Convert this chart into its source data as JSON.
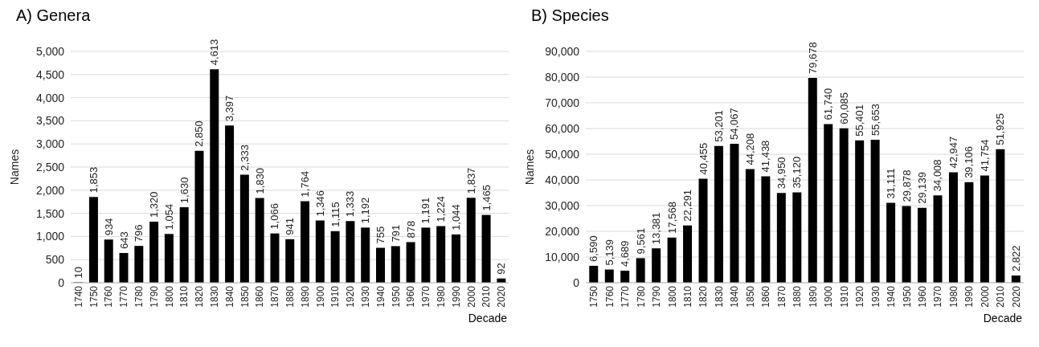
{
  "chart_data": [
    {
      "type": "bar",
      "title": "A) Genera",
      "xlabel": "Decade",
      "ylabel": "Names",
      "categories": [
        "1740",
        "1750",
        "1760",
        "1770",
        "1780",
        "1790",
        "1800",
        "1810",
        "1820",
        "1830",
        "1840",
        "1850",
        "1860",
        "1870",
        "1880",
        "1890",
        "1900",
        "1910",
        "1920",
        "1930",
        "1940",
        "1950",
        "1960",
        "1970",
        "1980",
        "1990",
        "2000",
        "2010",
        "2020"
      ],
      "values": [
        10,
        1853,
        934,
        643,
        796,
        1320,
        1054,
        1630,
        2850,
        4613,
        3397,
        2333,
        1830,
        1066,
        941,
        1764,
        1346,
        1115,
        1333,
        1192,
        755,
        791,
        878,
        1191,
        1224,
        1044,
        1837,
        1465,
        92
      ],
      "value_labels": [
        "10",
        "1,853",
        "934",
        "643",
        "796",
        "1,320",
        "1,054",
        "1,630",
        "2,850",
        "4,613",
        "3,397",
        "2,333",
        "1,830",
        "1,066",
        "941",
        "1,764",
        "1,346",
        "1,115",
        "1,333",
        "1,192",
        "755",
        "791",
        "878",
        "1,191",
        "1,224",
        "1,044",
        "1,837",
        "1,465",
        "92"
      ],
      "color": "#000000",
      "ylim": [
        0,
        5000
      ],
      "yticks": [
        {
          "value": 0,
          "label": "0"
        },
        {
          "value": 500,
          "label": "500"
        },
        {
          "value": 1000,
          "label": "1,000"
        },
        {
          "value": 1500,
          "label": "1,500"
        },
        {
          "value": 2000,
          "label": "2,000"
        },
        {
          "value": 2500,
          "label": "2,500"
        },
        {
          "value": 3000,
          "label": "3,000"
        },
        {
          "value": 3500,
          "label": "3,500"
        },
        {
          "value": 4000,
          "label": "4,000"
        },
        {
          "value": 4500,
          "label": "4,500"
        },
        {
          "value": 5000,
          "label": "5,000"
        }
      ],
      "grid": "y",
      "legend": false
    },
    {
      "type": "bar",
      "title": "B) Species",
      "xlabel": "Decade",
      "ylabel": "Names",
      "categories": [
        "1750",
        "1760",
        "1770",
        "1780",
        "1790",
        "1800",
        "1810",
        "1820",
        "1830",
        "1840",
        "1850",
        "1860",
        "1870",
        "1880",
        "1890",
        "1900",
        "1910",
        "1920",
        "1930",
        "1940",
        "1950",
        "1960",
        "1970",
        "1980",
        "1990",
        "2000",
        "2010",
        "2020"
      ],
      "values": [
        6590,
        5139,
        4689,
        9561,
        13381,
        17568,
        22291,
        40455,
        53201,
        54067,
        44208,
        41438,
        34950,
        35120,
        79678,
        61740,
        60085,
        55401,
        55653,
        31111,
        29878,
        29139,
        34008,
        42947,
        39106,
        41754,
        51925,
        2822
      ],
      "value_labels": [
        "6,590",
        "5,139",
        "4,689",
        "9,561",
        "13,381",
        "17,568",
        "22,291",
        "40,455",
        "53,201",
        "54,067",
        "44,208",
        "41,438",
        "34,950",
        "35,120",
        "79,678",
        "61,740",
        "60,085",
        "55,401",
        "55,653",
        "31,111",
        "29,878",
        "29,139",
        "34,008",
        "42,947",
        "39,106",
        "41,754",
        "51,925",
        "2,822"
      ],
      "color": "#000000",
      "ylim": [
        0,
        90000
      ],
      "yticks": [
        {
          "value": 0,
          "label": "0"
        },
        {
          "value": 10000,
          "label": "10,000"
        },
        {
          "value": 20000,
          "label": "20,000"
        },
        {
          "value": 30000,
          "label": "30,000"
        },
        {
          "value": 40000,
          "label": "40,000"
        },
        {
          "value": 50000,
          "label": "50,000"
        },
        {
          "value": 60000,
          "label": "60,000"
        },
        {
          "value": 70000,
          "label": "70,000"
        },
        {
          "value": 80000,
          "label": "80,000"
        },
        {
          "value": 90000,
          "label": "90,000"
        }
      ],
      "grid": "y",
      "legend": false
    }
  ]
}
